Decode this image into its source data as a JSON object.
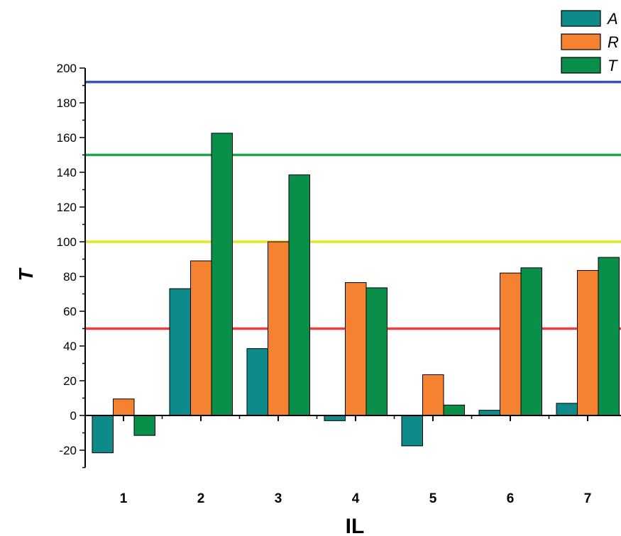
{
  "chart_data": {
    "type": "bar",
    "xlabel": "IL",
    "ylabel": "T",
    "categories": [
      "1",
      "2",
      "3",
      "4",
      "5",
      "6",
      "7"
    ],
    "ylim": [
      -30,
      200
    ],
    "yticks": [
      -20,
      0,
      20,
      40,
      60,
      80,
      100,
      120,
      140,
      160,
      180,
      200
    ],
    "series": [
      {
        "name": "A",
        "color": "#0f8a8a",
        "values": [
          -21.5,
          73,
          38.5,
          -3,
          -17.5,
          3,
          7
        ]
      },
      {
        "name": "R",
        "color": "#f58231",
        "values": [
          9.5,
          89,
          100,
          76.5,
          23.5,
          82,
          83.5
        ]
      },
      {
        "name": "T",
        "color": "#0a8f4a",
        "values": [
          -11.5,
          162.5,
          138.5,
          73.5,
          6,
          85,
          91
        ]
      }
    ],
    "reference_lines": [
      {
        "value": 192,
        "color": "#3b53b0"
      },
      {
        "value": 150,
        "color": "#1fa64a"
      },
      {
        "value": 100,
        "color": "#e6e61e"
      },
      {
        "value": 50,
        "color": "#ee3b3b"
      }
    ],
    "legend_position": "top-right",
    "grid": false
  }
}
